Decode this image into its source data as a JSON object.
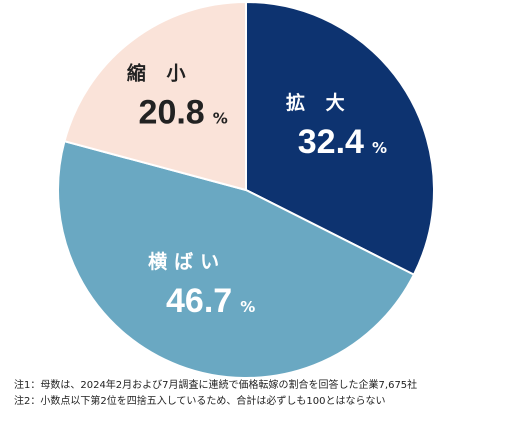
{
  "chart_data": {
    "type": "pie",
    "unit": "%",
    "slices": [
      {
        "label": "拡 大",
        "value": 32.4,
        "value_text": "32.4",
        "color": "#0d3370",
        "text_color": "#ffffff"
      },
      {
        "label": "横ばい",
        "value": 46.7,
        "value_text": "46.7",
        "color": "#6aa8c2",
        "text_color": "#ffffff"
      },
      {
        "label": "縮 小",
        "value": 20.8,
        "value_text": "20.8",
        "color": "#fae3d9",
        "text_color": "#222222"
      }
    ]
  },
  "notes": {
    "note1": "注1：母数は、2024年2月および7月調査に連続で価格転嫁の割合を回答した企業7,675社",
    "note2": "注2：小数点以下第2位を四捨五入しているため、合計は必ずしも100とはならない"
  }
}
